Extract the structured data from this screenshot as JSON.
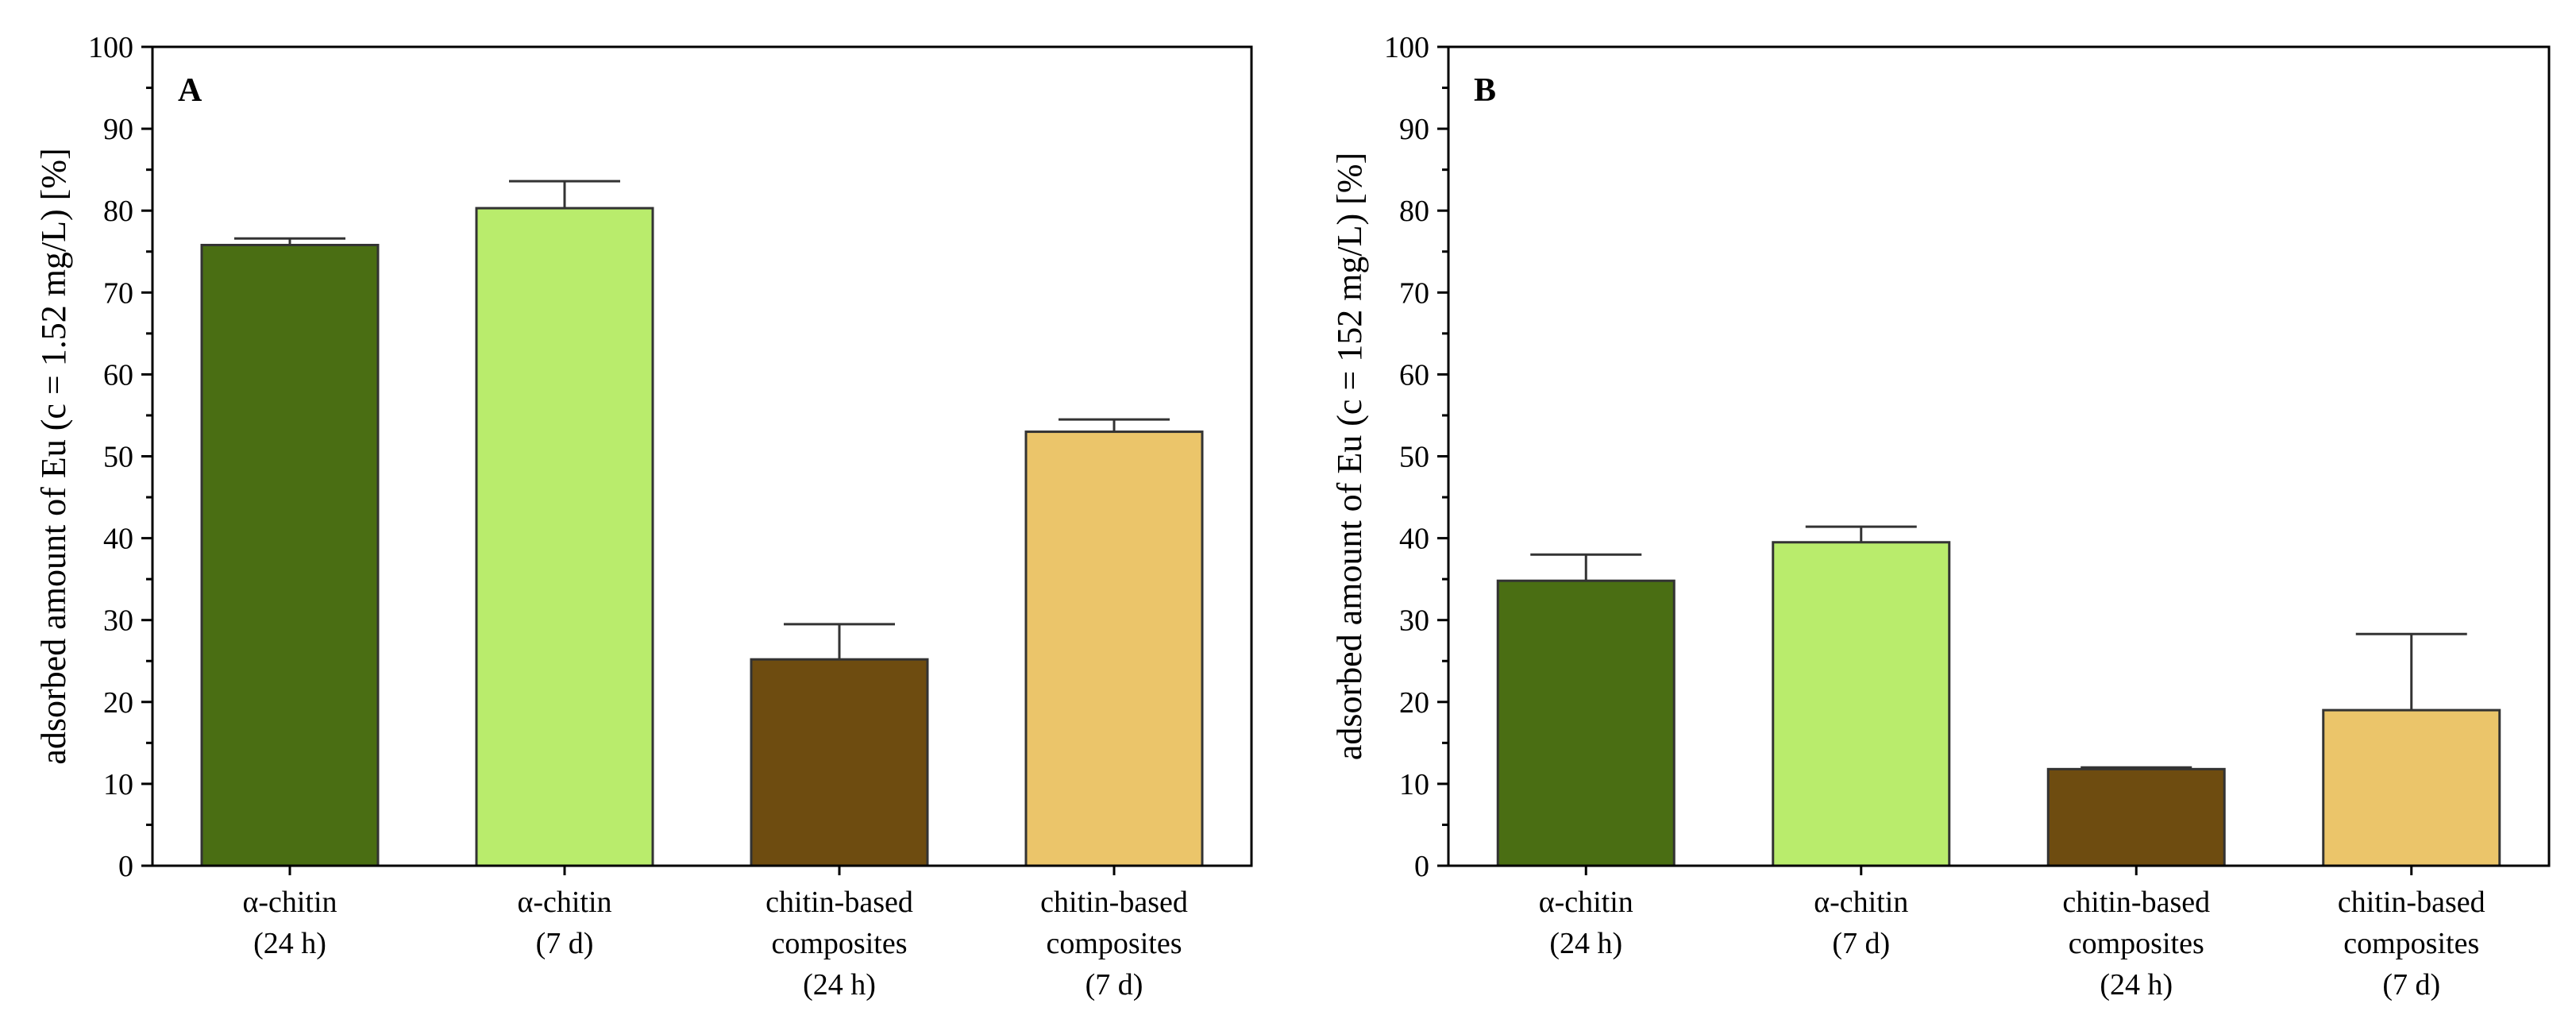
{
  "chart_data": [
    {
      "type": "bar",
      "panel_label": "A",
      "categories": [
        [
          "α-chitin",
          "(24 h)"
        ],
        [
          "α-chitin",
          "(7 d)"
        ],
        [
          "chitin-based",
          "composites",
          "(24 h)"
        ],
        [
          "chitin-based",
          "composites",
          "(7 d)"
        ]
      ],
      "values": [
        75.8,
        80.3,
        25.2,
        53.0
      ],
      "errors": [
        0.8,
        3.3,
        4.3,
        1.5
      ],
      "colors": [
        "#4a6e13",
        "#b9ec6c",
        "#6e4c10",
        "#ebc56a"
      ],
      "ylabel": "adsorbed amount of Eu (c = 1.52 mg/L) [%]",
      "xlabel": "",
      "ylim": [
        0,
        100
      ],
      "yticks": [
        0,
        10,
        20,
        30,
        40,
        50,
        60,
        70,
        80,
        90,
        100
      ],
      "grid": false
    },
    {
      "type": "bar",
      "panel_label": "B",
      "categories": [
        [
          "α-chitin",
          "(24 h)"
        ],
        [
          "α-chitin",
          "(7 d)"
        ],
        [
          "chitin-based",
          "composites",
          "(24 h)"
        ],
        [
          "chitin-based",
          "composites",
          "(7 d)"
        ]
      ],
      "values": [
        34.8,
        39.5,
        11.8,
        19.0
      ],
      "errors": [
        3.2,
        1.9,
        0.2,
        9.3
      ],
      "colors": [
        "#4a6e13",
        "#b9ec6c",
        "#6e4c10",
        "#ebc56a"
      ],
      "ylabel": "adsorbed amount of Eu (c = 152 mg/L) [%]",
      "xlabel": "",
      "ylim": [
        0,
        100
      ],
      "yticks": [
        0,
        10,
        20,
        30,
        40,
        50,
        60,
        70,
        80,
        90,
        100
      ],
      "grid": false
    }
  ]
}
